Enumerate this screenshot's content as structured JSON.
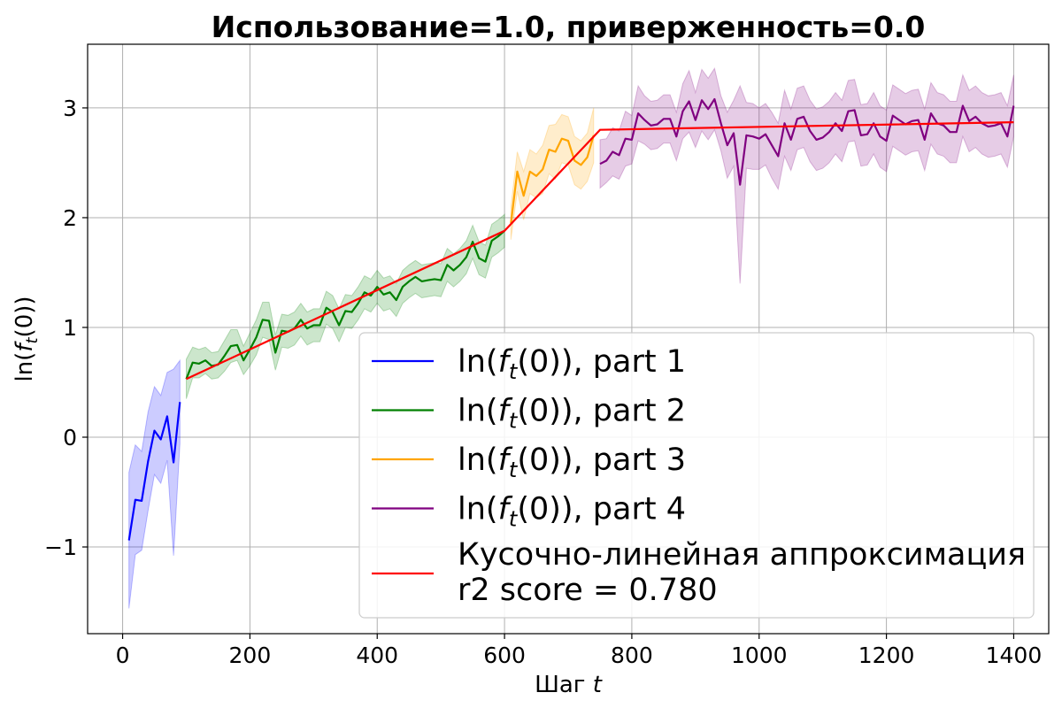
{
  "chart_data": {
    "type": "line",
    "title": "Использование=1.0, приверженность=0.0",
    "xlabel": "Шаг t",
    "xlabel_main": "Шаг",
    "xlabel_var": "t",
    "ylabel": "ln(f_t(0))",
    "xlim": [
      -55,
      1455
    ],
    "ylim": [
      -1.79,
      3.58
    ],
    "xticks": [
      0,
      200,
      400,
      600,
      800,
      1000,
      1200,
      1400
    ],
    "xtick_labels": [
      "0",
      "200",
      "400",
      "600",
      "800",
      "1000",
      "1200",
      "1400"
    ],
    "yticks": [
      -1,
      0,
      1,
      2,
      3
    ],
    "ytick_labels": [
      "−1",
      "0",
      "1",
      "2",
      "3"
    ],
    "grid": true,
    "legend_position": "lower-right",
    "series": [
      {
        "name": "ln(f_t(0)), part 1",
        "color": "#0000ff",
        "fill": "#0000ff",
        "x": [
          10,
          20,
          30,
          40,
          50,
          60,
          70,
          80,
          90
        ],
        "y": [
          -0.94,
          -0.57,
          -0.58,
          -0.22,
          0.06,
          -0.02,
          0.19,
          -0.23,
          0.32
        ],
        "band": [
          0.62,
          0.5,
          0.45,
          0.45,
          0.4,
          0.4,
          0.4,
          0.85,
          0.38
        ]
      },
      {
        "name": "ln(f_t(0)), part 2",
        "color": "#008000",
        "fill": "#008000",
        "x": [
          100,
          110,
          120,
          130,
          140,
          150,
          160,
          170,
          180,
          190,
          200,
          210,
          220,
          230,
          240,
          250,
          260,
          270,
          280,
          290,
          300,
          310,
          320,
          330,
          340,
          350,
          360,
          370,
          380,
          390,
          400,
          410,
          420,
          430,
          440,
          450,
          460,
          470,
          480,
          490,
          500,
          510,
          520,
          530,
          540,
          550,
          560,
          570,
          580,
          590,
          600
        ],
        "y": [
          0.53,
          0.68,
          0.67,
          0.7,
          0.65,
          0.66,
          0.74,
          0.83,
          0.84,
          0.7,
          0.8,
          0.91,
          1.07,
          1.06,
          0.77,
          0.97,
          0.96,
          0.99,
          1.07,
          0.99,
          1.02,
          1.02,
          1.18,
          1.14,
          1.02,
          1.15,
          1.14,
          1.22,
          1.32,
          1.29,
          1.37,
          1.3,
          1.32,
          1.25,
          1.37,
          1.42,
          1.46,
          1.42,
          1.43,
          1.44,
          1.43,
          1.57,
          1.52,
          1.57,
          1.64,
          1.78,
          1.63,
          1.6,
          1.79,
          1.83,
          1.88
        ],
        "band": [
          0.18,
          0.14,
          0.13,
          0.12,
          0.12,
          0.12,
          0.14,
          0.15,
          0.14,
          0.13,
          0.15,
          0.16,
          0.16,
          0.17,
          0.16,
          0.15,
          0.15,
          0.15,
          0.15,
          0.15,
          0.15,
          0.15,
          0.15,
          0.15,
          0.15,
          0.15,
          0.15,
          0.15,
          0.15,
          0.15,
          0.15,
          0.15,
          0.15,
          0.15,
          0.15,
          0.15,
          0.15,
          0.15,
          0.15,
          0.15,
          0.15,
          0.15,
          0.15,
          0.15,
          0.15,
          0.15,
          0.15,
          0.15,
          0.15,
          0.15,
          0.15
        ]
      },
      {
        "name": "ln(f_t(0)), part 3",
        "color": "#ffa500",
        "fill": "#ffa500",
        "x": [
          610,
          620,
          630,
          640,
          650,
          660,
          670,
          680,
          690,
          700,
          710,
          720,
          730,
          740
        ],
        "y": [
          1.95,
          2.42,
          2.2,
          2.42,
          2.38,
          2.44,
          2.62,
          2.6,
          2.72,
          2.7,
          2.52,
          2.48,
          2.55,
          2.75
        ],
        "band": [
          0.15,
          0.18,
          0.22,
          0.2,
          0.2,
          0.22,
          0.22,
          0.25,
          0.22,
          0.22,
          0.22,
          0.22,
          0.22,
          0.25
        ]
      },
      {
        "name": "ln(f_t(0)), part 4",
        "color": "#800080",
        "fill": "#800080",
        "x": [
          750,
          760,
          770,
          780,
          790,
          800,
          810,
          820,
          830,
          840,
          850,
          860,
          870,
          880,
          890,
          900,
          910,
          920,
          930,
          940,
          950,
          960,
          970,
          980,
          990,
          1000,
          1010,
          1020,
          1030,
          1040,
          1050,
          1060,
          1070,
          1080,
          1090,
          1100,
          1110,
          1120,
          1130,
          1140,
          1150,
          1160,
          1170,
          1180,
          1190,
          1200,
          1210,
          1220,
          1230,
          1240,
          1250,
          1260,
          1270,
          1280,
          1290,
          1300,
          1310,
          1320,
          1330,
          1340,
          1350,
          1360,
          1370,
          1380,
          1390,
          1400
        ],
        "y": [
          2.49,
          2.52,
          2.6,
          2.57,
          2.72,
          2.71,
          2.95,
          2.89,
          2.84,
          2.85,
          2.9,
          2.9,
          2.74,
          2.97,
          3.06,
          2.89,
          3.07,
          2.99,
          3.08,
          2.86,
          2.66,
          2.77,
          2.3,
          2.75,
          2.74,
          2.72,
          2.76,
          2.66,
          2.56,
          2.86,
          2.71,
          2.9,
          2.92,
          2.79,
          2.71,
          2.73,
          2.78,
          2.86,
          2.79,
          2.97,
          2.98,
          2.75,
          2.76,
          2.86,
          2.74,
          2.7,
          2.93,
          2.89,
          2.85,
          2.88,
          2.89,
          2.71,
          2.95,
          2.86,
          2.84,
          2.78,
          2.78,
          3.02,
          2.88,
          2.92,
          2.86,
          2.83,
          2.84,
          2.86,
          2.74,
          3.02
        ],
        "band": [
          0.22,
          0.2,
          0.22,
          0.22,
          0.25,
          0.22,
          0.25,
          0.22,
          0.22,
          0.22,
          0.22,
          0.22,
          0.22,
          0.25,
          0.28,
          0.25,
          0.28,
          0.28,
          0.28,
          0.25,
          0.3,
          0.3,
          0.9,
          0.3,
          0.3,
          0.28,
          0.28,
          0.3,
          0.3,
          0.3,
          0.28,
          0.28,
          0.28,
          0.28,
          0.28,
          0.28,
          0.28,
          0.28,
          0.28,
          0.28,
          0.28,
          0.28,
          0.28,
          0.28,
          0.28,
          0.28,
          0.28,
          0.28,
          0.28,
          0.28,
          0.28,
          0.28,
          0.28,
          0.28,
          0.28,
          0.28,
          0.28,
          0.28,
          0.28,
          0.28,
          0.28,
          0.28,
          0.28,
          0.28,
          0.28,
          0.28
        ]
      }
    ],
    "fit": {
      "name": "Кусочно-линейная аппроксимация",
      "score_label": "r2 score = 0.780",
      "color": "#ff0000",
      "x": [
        100,
        600,
        750,
        1400
      ],
      "y": [
        0.53,
        1.88,
        2.8,
        2.87
      ]
    }
  }
}
